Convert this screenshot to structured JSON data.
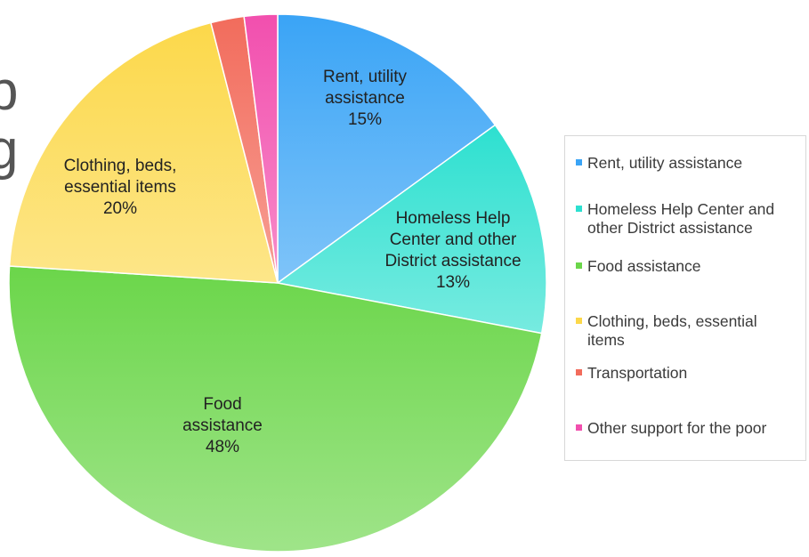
{
  "edge_text": [
    "p",
    "g"
  ],
  "chart_data": {
    "type": "pie",
    "title": "",
    "legend_position": "right",
    "slices": [
      {
        "label": "Rent, utility assistance",
        "value": 15,
        "color": "#3aa4f6",
        "inner_label": [
          "Rent, utility",
          "assistance",
          "15%"
        ]
      },
      {
        "label": "Homeless Help Center and other District assistance",
        "value": 13,
        "color": "#2de0d0",
        "inner_label": [
          "Homeless Help",
          "Center and other",
          "District assistance",
          "13%"
        ]
      },
      {
        "label": "Food assistance",
        "value": 48,
        "color": "#6bd64a",
        "inner_label": [
          "Food",
          "assistance",
          "48%"
        ]
      },
      {
        "label": "Clothing, beds, essential items",
        "value": 20,
        "color": "#fcd84a",
        "inner_label": [
          "Clothing, beds,",
          "essential items",
          "20%"
        ]
      },
      {
        "label": "Transportation",
        "value": 2,
        "color": "#f26c5c",
        "inner_label": []
      },
      {
        "label": "Other support for the poor",
        "value": 2,
        "color": "#f24fae",
        "inner_label": []
      }
    ],
    "legend": [
      {
        "lines": [
          "Rent, utility assistance"
        ]
      },
      {
        "lines": [
          "Homeless Help Center and",
          "other District assistance"
        ]
      },
      {
        "lines": [
          "Food assistance"
        ]
      },
      {
        "lines": [
          "Clothing, beds, essential",
          "items"
        ]
      },
      {
        "lines": [
          "Transportation"
        ]
      },
      {
        "lines": [
          "Other support for the poor"
        ]
      }
    ]
  }
}
